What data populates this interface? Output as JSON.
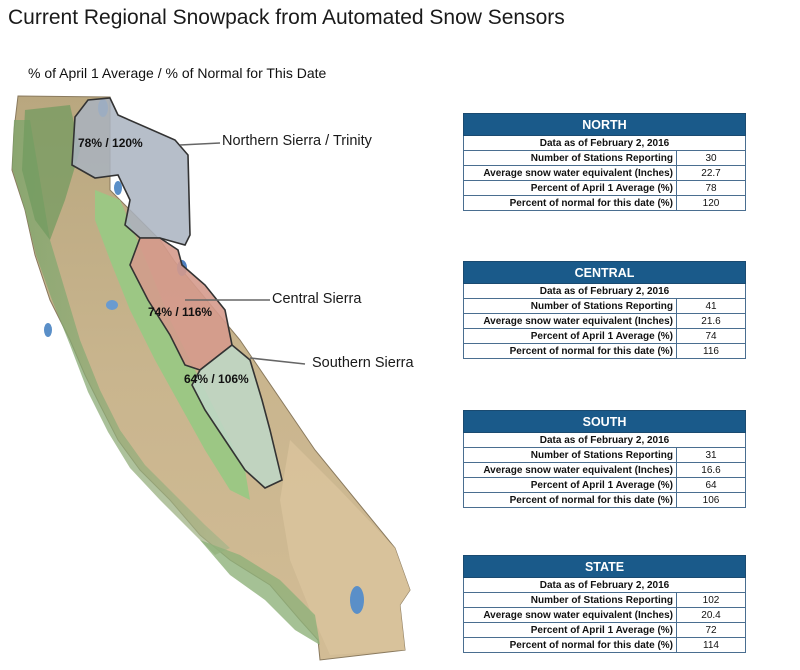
{
  "title": "Current Regional Snowpack from Automated Snow Sensors",
  "subtitle": "% of April 1 Average / % of Normal for This Date",
  "map": {
    "regions": [
      {
        "name": "Northern Sierra / Trinity",
        "value_label": "78% / 120%",
        "fill": "#a9b3bf"
      },
      {
        "name": "Central Sierra",
        "value_label": "74% / 116%",
        "fill": "#d59a8c"
      },
      {
        "name": "Southern Sierra",
        "value_label": "64% / 106%",
        "fill": "#bfd6c4"
      }
    ]
  },
  "tables": [
    {
      "region": "NORTH",
      "date": "Data as of February 2, 2016",
      "rows": [
        {
          "label": "Number of Stations Reporting",
          "value": "30"
        },
        {
          "label": "Average snow water equivalent (Inches)",
          "value": "22.7"
        },
        {
          "label": "Percent of April 1 Average (%)",
          "value": "78"
        },
        {
          "label": "Percent of normal for this date (%)",
          "value": "120"
        }
      ]
    },
    {
      "region": "CENTRAL",
      "date": "Data as of February 2, 2016",
      "rows": [
        {
          "label": "Number of Stations Reporting",
          "value": "41"
        },
        {
          "label": "Average snow water equivalent (Inches)",
          "value": "21.6"
        },
        {
          "label": "Percent of April 1 Average (%)",
          "value": "74"
        },
        {
          "label": "Percent of normal for this date (%)",
          "value": "116"
        }
      ]
    },
    {
      "region": "SOUTH",
      "date": "Data as of February 2, 2016",
      "rows": [
        {
          "label": "Number of Stations Reporting",
          "value": "31"
        },
        {
          "label": "Average snow water equivalent (Inches)",
          "value": "16.6"
        },
        {
          "label": "Percent of April 1 Average (%)",
          "value": "64"
        },
        {
          "label": "Percent of normal for this date (%)",
          "value": "106"
        }
      ]
    },
    {
      "region": "STATE",
      "date": "Data as of February 2, 2016",
      "rows": [
        {
          "label": "Number of Stations Reporting",
          "value": "102"
        },
        {
          "label": "Average snow water equivalent (Inches)",
          "value": "20.4"
        },
        {
          "label": "Percent of April 1 Average (%)",
          "value": "72"
        },
        {
          "label": "Percent of normal for this date (%)",
          "value": "114"
        }
      ]
    }
  ],
  "colors": {
    "table_header": "#1a5a8a",
    "table_border": "#4a6e90",
    "land": "#c9b48c",
    "valley": "#8fbf78",
    "water": "#5a8fc8"
  }
}
